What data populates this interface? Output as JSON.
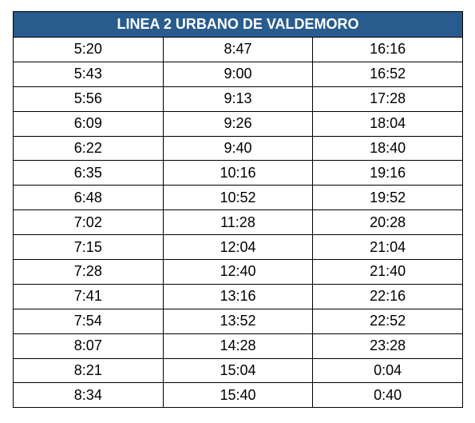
{
  "table": {
    "title": "LINEA 2 URBANO DE VALDEMORO",
    "rows": [
      [
        "5:20",
        "8:47",
        "16:16"
      ],
      [
        "5:43",
        "9:00",
        "16:52"
      ],
      [
        "5:56",
        "9:13",
        "17:28"
      ],
      [
        "6:09",
        "9:26",
        "18:04"
      ],
      [
        "6:22",
        "9:40",
        "18:40"
      ],
      [
        "6:35",
        "10:16",
        "19:16"
      ],
      [
        "6:48",
        "10:52",
        "19:52"
      ],
      [
        "7:02",
        "11:28",
        "20:28"
      ],
      [
        "7:15",
        "12:04",
        "21:04"
      ],
      [
        "7:28",
        "12:40",
        "21:40"
      ],
      [
        "7:41",
        "13:16",
        "22:16"
      ],
      [
        "7:54",
        "13:52",
        "22:52"
      ],
      [
        "8:07",
        "14:28",
        "23:28"
      ],
      [
        "8:21",
        "15:04",
        "0:04"
      ],
      [
        "8:34",
        "15:40",
        "0:40"
      ]
    ]
  }
}
